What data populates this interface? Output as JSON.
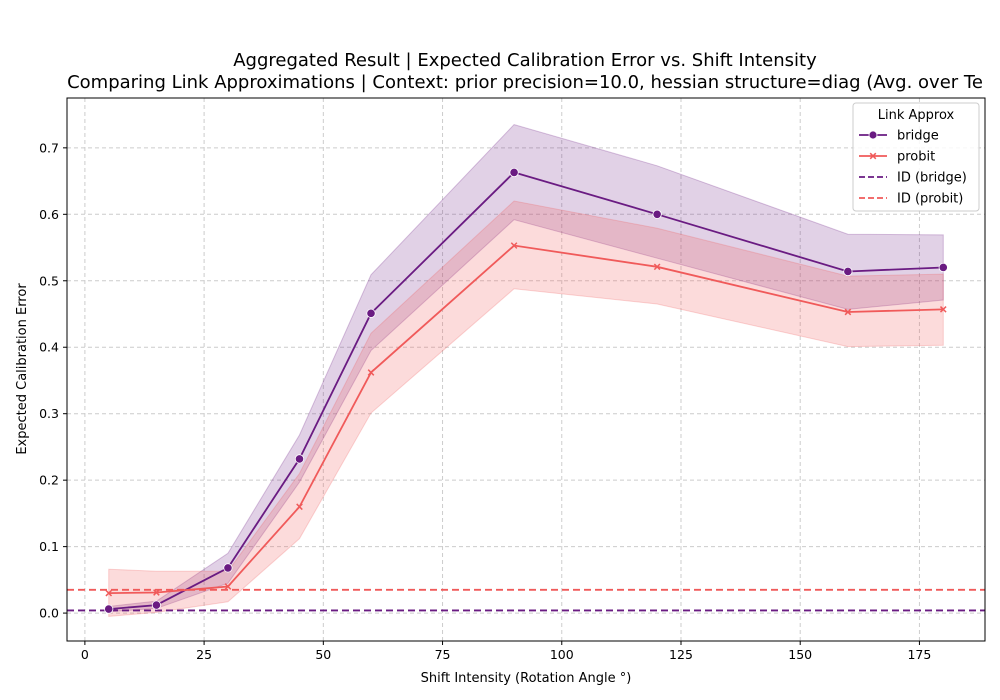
{
  "chart_data": {
    "type": "line",
    "title": "Aggregated Result | Expected Calibration Error vs. Shift Intensity",
    "subtitle": "Comparing Link Approximations | Context: prior precision=10.0, hessian structure=diag (Avg. over Te",
    "xlabel": "Shift Intensity (Rotation Angle °)",
    "ylabel": "Expected Calibration Error",
    "xlim": [
      -3.75,
      188.75
    ],
    "ylim": [
      -0.042,
      0.775
    ],
    "xticks": [
      0,
      25,
      50,
      75,
      100,
      125,
      150,
      175
    ],
    "yticks": [
      0.0,
      0.1,
      0.2,
      0.3,
      0.4,
      0.5,
      0.6,
      0.7
    ],
    "ytick_labels": [
      "0.0",
      "0.1",
      "0.2",
      "0.3",
      "0.4",
      "0.5",
      "0.6",
      "0.7"
    ],
    "grid": true,
    "legend": {
      "title": "Link Approx",
      "placement": "top-right",
      "entries": [
        "bridge",
        "probit",
        "ID (bridge)",
        "ID (probit)"
      ]
    },
    "x": [
      5,
      15,
      30,
      45,
      60,
      90,
      120,
      160,
      180
    ],
    "series": [
      {
        "name": "bridge",
        "color": "#6a1b82",
        "marker": "circle",
        "values": [
          0.006,
          0.012,
          0.068,
          0.232,
          0.451,
          0.663,
          0.6,
          0.514,
          0.52
        ],
        "lower": [
          0.002,
          0.007,
          0.045,
          0.197,
          0.395,
          0.592,
          0.534,
          0.457,
          0.471
        ],
        "upper": [
          0.01,
          0.018,
          0.09,
          0.268,
          0.509,
          0.735,
          0.673,
          0.57,
          0.569
        ]
      },
      {
        "name": "probit",
        "color": "#f05a5a",
        "marker": "x",
        "values": [
          0.03,
          0.031,
          0.04,
          0.16,
          0.362,
          0.553,
          0.521,
          0.453,
          0.457
        ],
        "lower": [
          -0.005,
          0.001,
          0.017,
          0.112,
          0.301,
          0.488,
          0.465,
          0.401,
          0.403
        ],
        "upper": [
          0.066,
          0.063,
          0.063,
          0.21,
          0.421,
          0.62,
          0.579,
          0.507,
          0.51
        ]
      }
    ],
    "reference_lines": [
      {
        "name": "ID (bridge)",
        "y": 0.004,
        "color": "#6a1b82",
        "style": "dashed"
      },
      {
        "name": "ID (probit)",
        "y": 0.035,
        "color": "#f05a5a",
        "style": "dashed"
      }
    ]
  }
}
